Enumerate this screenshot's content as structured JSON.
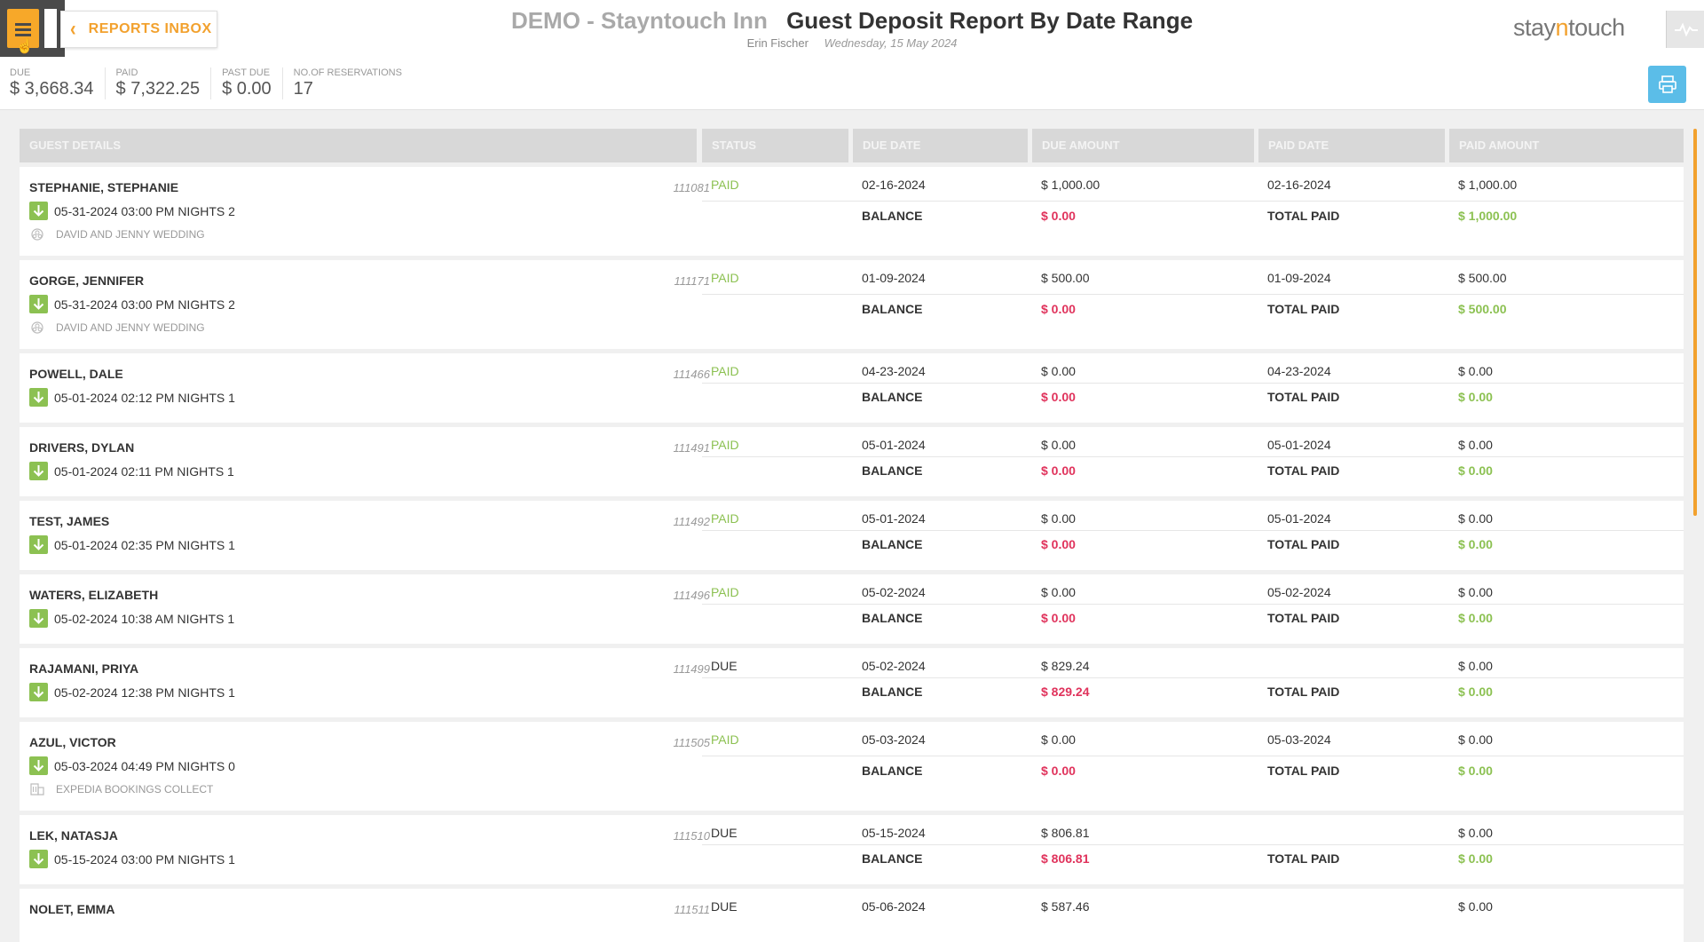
{
  "header": {
    "back_label": "REPORTS INBOX",
    "hotel_name": "DEMO - Stayntouch Inn",
    "report_title": "Guest Deposit Report By Date Range",
    "user_name": "Erin Fischer",
    "report_date": "Wednesday, 15 May 2024",
    "logo_prefix": "stay",
    "logo_n": "n",
    "logo_suffix": "touch"
  },
  "summary": {
    "due_label": "DUE",
    "due_value": "$ 3,668.34",
    "paid_label": "PAID",
    "paid_value": "$ 7,322.25",
    "past_due_label": "PAST DUE",
    "past_due_value": "$ 0.00",
    "reservations_label": "NO.OF RESERVATIONS",
    "reservations_value": "17"
  },
  "columns": {
    "guest_details": "GUEST DETAILS",
    "status": "STATUS",
    "due_date": "DUE DATE",
    "due_amount": "DUE AMOUNT",
    "paid_date": "PAID DATE",
    "paid_amount": "PAID AMOUNT"
  },
  "labels": {
    "balance": "BALANCE",
    "total_paid": "TOTAL PAID"
  },
  "rows": [
    {
      "name": "STEPHANIE, STEPHANIE",
      "res_no": "111081",
      "arrival": "05-31-2024 03:00 PM NIGHTS 2",
      "group": "DAVID AND JENNY WEDDING",
      "status": "PAID",
      "due_date": "02-16-2024",
      "due_amount": "$ 1,000.00",
      "paid_date": "02-16-2024",
      "paid_amount": "$ 1,000.00",
      "balance": "$ 0.00",
      "total_paid": "$ 1,000.00"
    },
    {
      "name": "GORGE, JENNIFER",
      "res_no": "111171",
      "arrival": "05-31-2024 03:00 PM NIGHTS 2",
      "group": "DAVID AND JENNY WEDDING",
      "status": "PAID",
      "due_date": "01-09-2024",
      "due_amount": "$ 500.00",
      "paid_date": "01-09-2024",
      "paid_amount": "$ 500.00",
      "balance": "$ 0.00",
      "total_paid": "$ 500.00"
    },
    {
      "name": "POWELL, DALE",
      "res_no": "111466",
      "arrival": "05-01-2024 02:12 PM NIGHTS 1",
      "group": "",
      "status": "PAID",
      "due_date": "04-23-2024",
      "due_amount": "$ 0.00",
      "paid_date": "04-23-2024",
      "paid_amount": "$ 0.00",
      "balance": "$ 0.00",
      "total_paid": "$ 0.00"
    },
    {
      "name": "DRIVERS, DYLAN",
      "res_no": "111491",
      "arrival": "05-01-2024 02:11 PM NIGHTS 1",
      "group": "",
      "status": "PAID",
      "due_date": "05-01-2024",
      "due_amount": "$ 0.00",
      "paid_date": "05-01-2024",
      "paid_amount": "$ 0.00",
      "balance": "$ 0.00",
      "total_paid": "$ 0.00"
    },
    {
      "name": "TEST, JAMES",
      "res_no": "111492",
      "arrival": "05-01-2024 02:35 PM NIGHTS 1",
      "group": "",
      "status": "PAID",
      "due_date": "05-01-2024",
      "due_amount": "$ 0.00",
      "paid_date": "05-01-2024",
      "paid_amount": "$ 0.00",
      "balance": "$ 0.00",
      "total_paid": "$ 0.00"
    },
    {
      "name": "WATERS, ELIZABETH",
      "res_no": "111496",
      "arrival": "05-02-2024 10:38 AM NIGHTS 1",
      "group": "",
      "status": "PAID",
      "due_date": "05-02-2024",
      "due_amount": "$ 0.00",
      "paid_date": "05-02-2024",
      "paid_amount": "$ 0.00",
      "balance": "$ 0.00",
      "total_paid": "$ 0.00"
    },
    {
      "name": "RAJAMANI, PRIYA",
      "res_no": "111499",
      "arrival": "05-02-2024 12:38 PM NIGHTS 1",
      "group": "",
      "status": "DUE",
      "due_date": "05-02-2024",
      "due_amount": "$ 829.24",
      "paid_date": "",
      "paid_amount": "$ 0.00",
      "balance": "$ 829.24",
      "total_paid": "$ 0.00"
    },
    {
      "name": "AZUL, VICTOR",
      "res_no": "111505",
      "arrival": "05-03-2024 04:49 PM NIGHTS 0",
      "group": "EXPEDIA BOOKINGS COLLECT",
      "status": "PAID",
      "due_date": "05-03-2024",
      "due_amount": "$ 0.00",
      "paid_date": "05-03-2024",
      "paid_amount": "$ 0.00",
      "balance": "$ 0.00",
      "total_paid": "$ 0.00"
    },
    {
      "name": "LEK, NATASJA",
      "res_no": "111510",
      "arrival": "05-15-2024 03:00 PM NIGHTS 1",
      "group": "",
      "status": "DUE",
      "due_date": "05-15-2024",
      "due_amount": "$ 806.81",
      "paid_date": "",
      "paid_amount": "$ 0.00",
      "balance": "$ 806.81",
      "total_paid": "$ 0.00"
    },
    {
      "name": "NOLET, EMMA",
      "res_no": "111511",
      "arrival": "",
      "group": "",
      "status": "DUE",
      "due_date": "05-06-2024",
      "due_amount": "$ 587.46",
      "paid_date": "",
      "paid_amount": "$ 0.00",
      "balance": "",
      "total_paid": ""
    }
  ]
}
